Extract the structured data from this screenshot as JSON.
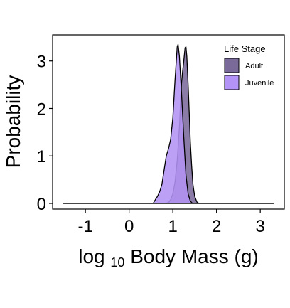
{
  "chart_data": {
    "type": "area",
    "xlabel_base": "log",
    "xlabel_sub": "10",
    "xlabel_rest": " Body Mass (g)",
    "ylabel": "Probability",
    "xlim": [
      -1.75,
      3.55
    ],
    "ylim": [
      -0.12,
      3.55
    ],
    "xticks": [
      -1,
      0,
      1,
      2,
      3
    ],
    "yticks": [
      0,
      1,
      2,
      3
    ],
    "grid": false,
    "legend": {
      "title": "Life Stage",
      "position": "top-right"
    },
    "series": [
      {
        "name": "Adult",
        "color": "#7a6a9a",
        "points": [
          [
            -1.5,
            0
          ],
          [
            0.85,
            0
          ],
          [
            0.9,
            0.02
          ],
          [
            0.95,
            0.08
          ],
          [
            1.0,
            0.2
          ],
          [
            1.05,
            0.45
          ],
          [
            1.1,
            0.9
          ],
          [
            1.15,
            1.6
          ],
          [
            1.18,
            2.2
          ],
          [
            1.2,
            2.55
          ],
          [
            1.22,
            2.75
          ],
          [
            1.25,
            3.0
          ],
          [
            1.28,
            3.28
          ],
          [
            1.3,
            3.3
          ],
          [
            1.32,
            3.1
          ],
          [
            1.35,
            2.5
          ],
          [
            1.38,
            1.8
          ],
          [
            1.4,
            1.3
          ],
          [
            1.43,
            0.8
          ],
          [
            1.46,
            0.4
          ],
          [
            1.5,
            0.15
          ],
          [
            1.55,
            0.03
          ],
          [
            1.6,
            0
          ],
          [
            3.3,
            0
          ]
        ]
      },
      {
        "name": "Juvenile",
        "color": "#b393f5",
        "points": [
          [
            -1.5,
            0
          ],
          [
            0.55,
            0
          ],
          [
            0.6,
            0.08
          ],
          [
            0.65,
            0.15
          ],
          [
            0.7,
            0.25
          ],
          [
            0.75,
            0.4
          ],
          [
            0.8,
            0.7
          ],
          [
            0.85,
            1.0
          ],
          [
            0.9,
            1.15
          ],
          [
            0.95,
            1.35
          ],
          [
            1.0,
            1.8
          ],
          [
            1.05,
            2.6
          ],
          [
            1.1,
            3.3
          ],
          [
            1.12,
            3.35
          ],
          [
            1.15,
            3.1
          ],
          [
            1.2,
            2.3
          ],
          [
            1.25,
            1.4
          ],
          [
            1.3,
            0.6
          ],
          [
            1.35,
            0.2
          ],
          [
            1.4,
            0.05
          ],
          [
            1.45,
            0
          ],
          [
            3.3,
            0
          ]
        ]
      }
    ]
  }
}
